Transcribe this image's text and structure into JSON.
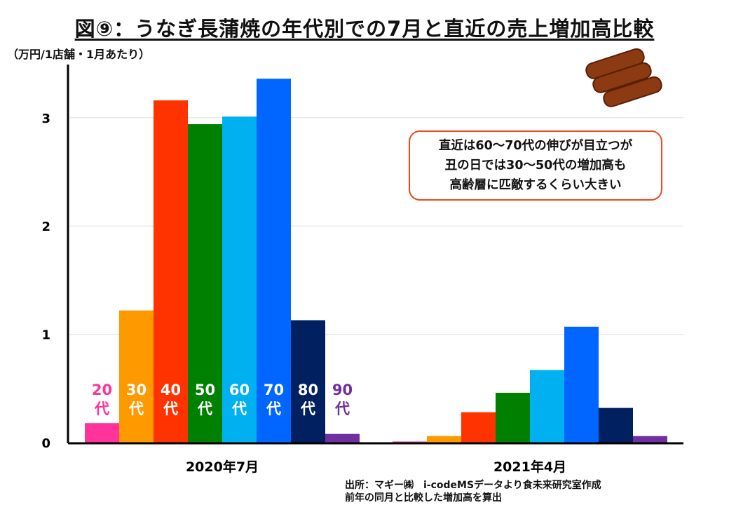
{
  "chart_data": {
    "type": "bar",
    "title": "図⑨：うなぎ長蒲焼の年代別での7月と直近の売上増加高比較",
    "ylabel": "（万円/1店舗・1月あたり）",
    "xlabel": "",
    "ylim": [
      0,
      3.5
    ],
    "yticks": [
      "0",
      "1",
      "2",
      "3"
    ],
    "grid": true,
    "categories": [
      "2020年7月",
      "2021年4月"
    ],
    "series": [
      {
        "name": "20代",
        "color": "#ff3399",
        "values": [
          0.18,
          0.01
        ]
      },
      {
        "name": "30代",
        "color": "#ff9900",
        "values": [
          1.22,
          0.06
        ]
      },
      {
        "name": "40代",
        "color": "#ff3300",
        "values": [
          3.16,
          0.28
        ]
      },
      {
        "name": "50代",
        "color": "#008000",
        "values": [
          2.94,
          0.46
        ]
      },
      {
        "name": "60代",
        "color": "#00b0f0",
        "values": [
          3.01,
          0.67
        ]
      },
      {
        "name": "70代",
        "color": "#0066ff",
        "values": [
          3.36,
          1.07
        ]
      },
      {
        "name": "80代",
        "color": "#002060",
        "values": [
          1.13,
          0.32
        ]
      },
      {
        "name": "90代",
        "color": "#7030a0",
        "values": [
          0.08,
          0.06
        ]
      }
    ],
    "series_label_parts": [
      [
        "20",
        "代"
      ],
      [
        "30",
        "代"
      ],
      [
        "40",
        "代"
      ],
      [
        "50",
        "代"
      ],
      [
        "60",
        "代"
      ],
      [
        "70",
        "代"
      ],
      [
        "80",
        "代"
      ],
      [
        "90",
        "代"
      ]
    ],
    "annotation": [
      "直近は60～70代の伸びが目立つが",
      "丑の日では30～50代の増加高も",
      "高齢層に匹敵するくらい大きい"
    ]
  },
  "source": [
    "出所：マギー㈱　i-codeMSデータより食未来研究室作成",
    "前年の同月と比較した増加高を算出"
  ]
}
